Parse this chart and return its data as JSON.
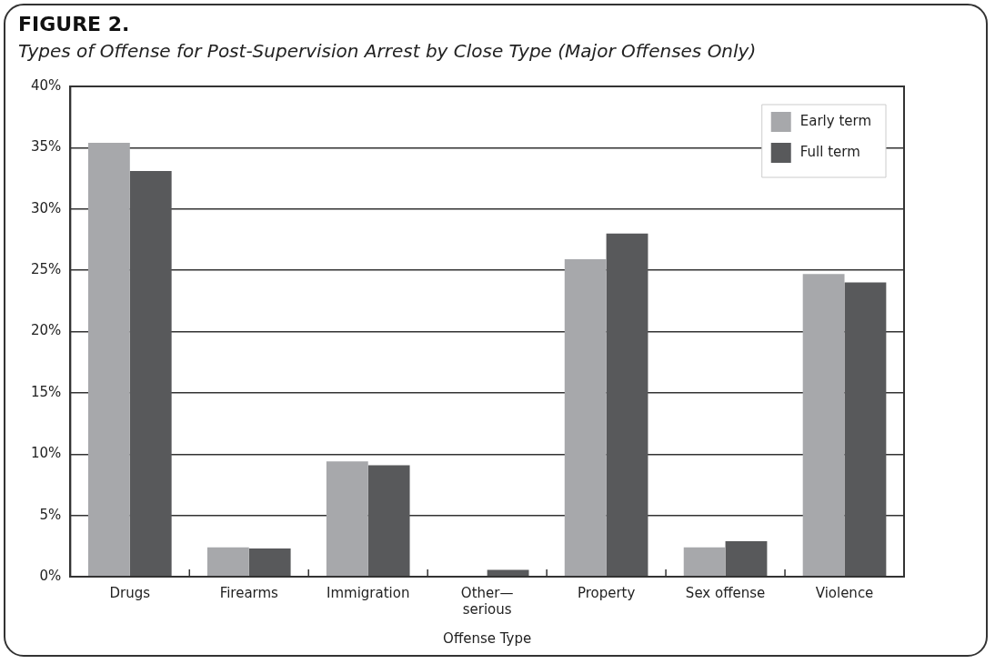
{
  "chart_data": {
    "type": "bar",
    "title": "FIGURE 2.",
    "subtitle": "Types of Offense for Post-Supervision Arrest by Close Type (Major Offenses Only)",
    "xlabel": "Offense Type",
    "categories": [
      "Drugs",
      "Firearms",
      "Immigration",
      "Other—serious",
      "Property",
      "Sex offense",
      "Violence"
    ],
    "series": [
      {
        "name": "Early term",
        "color": "#a7a8ab",
        "values": [
          35.4,
          2.4,
          9.4,
          0,
          25.9,
          2.4,
          24.7
        ]
      },
      {
        "name": "Full term",
        "color": "#58595b",
        "values": [
          33.1,
          2.3,
          9.1,
          0.55,
          28.0,
          2.9,
          24.0
        ]
      }
    ],
    "ylim": [
      0,
      40
    ],
    "yticks": [
      {
        "value": 0,
        "label": "0%"
      },
      {
        "value": 5,
        "label": "5%"
      },
      {
        "value": 10,
        "label": "10%"
      },
      {
        "value": 15,
        "label": "15%"
      },
      {
        "value": 20,
        "label": "20%"
      },
      {
        "value": 25,
        "label": "25%"
      },
      {
        "value": 30,
        "label": "30%"
      },
      {
        "value": 35,
        "label": "35%"
      },
      {
        "value": 40,
        "label": "40%"
      }
    ],
    "grid": "y",
    "legend": "top right"
  }
}
